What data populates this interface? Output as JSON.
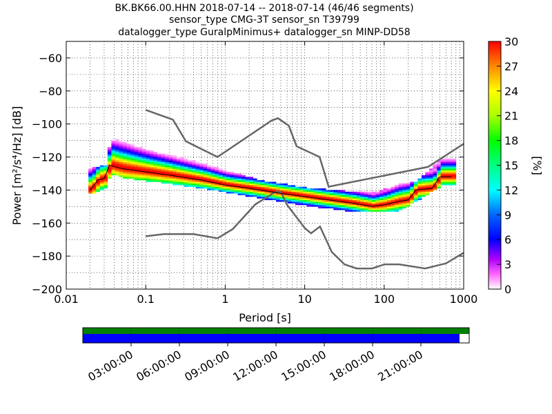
{
  "chart_data": {
    "type": "heatmap",
    "title_lines": [
      "BK.BK66.00.HHN   2018-07-14 -- 2018-07-14  (46/46 segments)",
      "sensor_type CMG-3T sensor_sn T39799",
      "datalogger_type GuralpMinimus+ datalogger_sn MINP-DD58"
    ],
    "xlabel": "Period [s]",
    "ylabel": "Power [m²/s⁴/Hz] [dB]",
    "xscale": "log",
    "xlim": [
      0.01,
      1000
    ],
    "ylim": [
      -200,
      -50
    ],
    "xticks": [
      0.01,
      0.1,
      1,
      10,
      100,
      1000
    ],
    "xtick_labels": [
      "0.01",
      "0.1",
      "1",
      "10",
      "100",
      "1000"
    ],
    "yticks": [
      -200,
      -180,
      -160,
      -140,
      -120,
      -100,
      -80,
      -60
    ],
    "ytick_labels": [
      "−200",
      "−180",
      "−160",
      "−140",
      "−120",
      "−100",
      "−80",
      "−60"
    ],
    "grid": true,
    "colorbar": {
      "label": "[%]",
      "range": [
        0,
        30
      ],
      "ticks": [
        0,
        3,
        6,
        9,
        12,
        15,
        18,
        21,
        24,
        27,
        30
      ],
      "tick_labels": [
        "0",
        "3",
        "6",
        "9",
        "12",
        "15",
        "18",
        "21",
        "24",
        "27",
        "30"
      ]
    },
    "noise_models": [
      {
        "type": "high",
        "points": [
          [
            0.1,
            -91.5
          ],
          [
            0.22,
            -97.4
          ],
          [
            0.32,
            -110.5
          ],
          [
            0.8,
            -120.0
          ],
          [
            3.8,
            -98.0
          ],
          [
            4.6,
            -96.5
          ],
          [
            6.3,
            -101.0
          ],
          [
            7.9,
            -113.5
          ],
          [
            15.4,
            -120.0
          ],
          [
            20,
            -138.0
          ],
          [
            354.8,
            -126.0
          ],
          [
            1000,
            -112.0
          ]
        ]
      },
      {
        "type": "low",
        "points": [
          [
            0.1,
            -168.0
          ],
          [
            0.17,
            -166.7
          ],
          [
            0.4,
            -166.7
          ],
          [
            0.8,
            -169.2
          ],
          [
            1.24,
            -163.7
          ],
          [
            2.4,
            -148.6
          ],
          [
            4.3,
            -141.1
          ],
          [
            5.0,
            -141.1
          ],
          [
            6.0,
            -149.0
          ],
          [
            10.0,
            -163.0
          ],
          [
            12.0,
            -166.2
          ],
          [
            15.6,
            -162.1
          ],
          [
            21.9,
            -177.5
          ],
          [
            31.6,
            -185.0
          ],
          [
            45.0,
            -187.5
          ],
          [
            70.0,
            -187.5
          ],
          [
            101.0,
            -185.0
          ],
          [
            154.0,
            -185.0
          ],
          [
            328.0,
            -187.5
          ],
          [
            600.0,
            -184.4
          ],
          [
            1000,
            -178.0
          ]
        ]
      }
    ],
    "psd_median": [
      [
        0.02,
        -140
      ],
      [
        0.025,
        -134
      ],
      [
        0.03,
        -133
      ],
      [
        0.035,
        -125
      ],
      [
        0.05,
        -127
      ],
      [
        0.1,
        -129
      ],
      [
        0.2,
        -131
      ],
      [
        0.5,
        -134
      ],
      [
        1,
        -137
      ],
      [
        2,
        -139
      ],
      [
        5,
        -142
      ],
      [
        10,
        -144
      ],
      [
        20,
        -146
      ],
      [
        40,
        -148
      ],
      [
        70,
        -150
      ],
      [
        100,
        -149
      ],
      [
        150,
        -147
      ],
      [
        200,
        -146
      ],
      [
        250,
        -140
      ],
      [
        400,
        -139
      ],
      [
        500,
        -132
      ],
      [
        700,
        -132
      ]
    ],
    "psd_distribution": [
      {
        "period": 0.02,
        "upper": -128,
        "lower": -142,
        "spread": 5
      },
      {
        "period": 0.03,
        "upper": -126,
        "lower": -138,
        "spread": 5
      },
      {
        "period": 0.035,
        "upper": -110,
        "lower": -130,
        "spread": 6
      },
      {
        "period": 0.05,
        "upper": -112,
        "lower": -132,
        "spread": 6
      },
      {
        "period": 0.1,
        "upper": -117,
        "lower": -134,
        "spread": 5
      },
      {
        "period": 0.3,
        "upper": -122,
        "lower": -137,
        "spread": 4
      },
      {
        "period": 1,
        "upper": -130,
        "lower": -141,
        "spread": 3
      },
      {
        "period": 3,
        "upper": -136,
        "lower": -145,
        "spread": 3
      },
      {
        "period": 10,
        "upper": -140,
        "lower": -149,
        "spread": 3
      },
      {
        "period": 30,
        "upper": -142,
        "lower": -152,
        "spread": 3
      },
      {
        "period": 70,
        "upper": -143,
        "lower": -153,
        "spread": 3
      },
      {
        "period": 150,
        "upper": -138,
        "lower": -152,
        "spread": 4
      },
      {
        "period": 250,
        "upper": -136,
        "lower": -146,
        "spread": 4
      },
      {
        "period": 500,
        "upper": -122,
        "lower": -137,
        "spread": 4
      },
      {
        "period": 700,
        "upper": -122,
        "lower": -137,
        "spread": 4
      }
    ],
    "timeline": {
      "tick_labels": [
        "03:00:00",
        "06:00:00",
        "09:00:00",
        "12:00:00",
        "15:00:00",
        "18:00:00",
        "21:00:00"
      ],
      "tick_hours": [
        3,
        6,
        9,
        12,
        15,
        18,
        21
      ],
      "range_hours": [
        0,
        24
      ],
      "data_coverage": [
        0,
        24
      ],
      "psd_coverage": [
        0,
        23.4
      ],
      "data_color": "#008000",
      "psd_color": "#0000ff"
    }
  }
}
